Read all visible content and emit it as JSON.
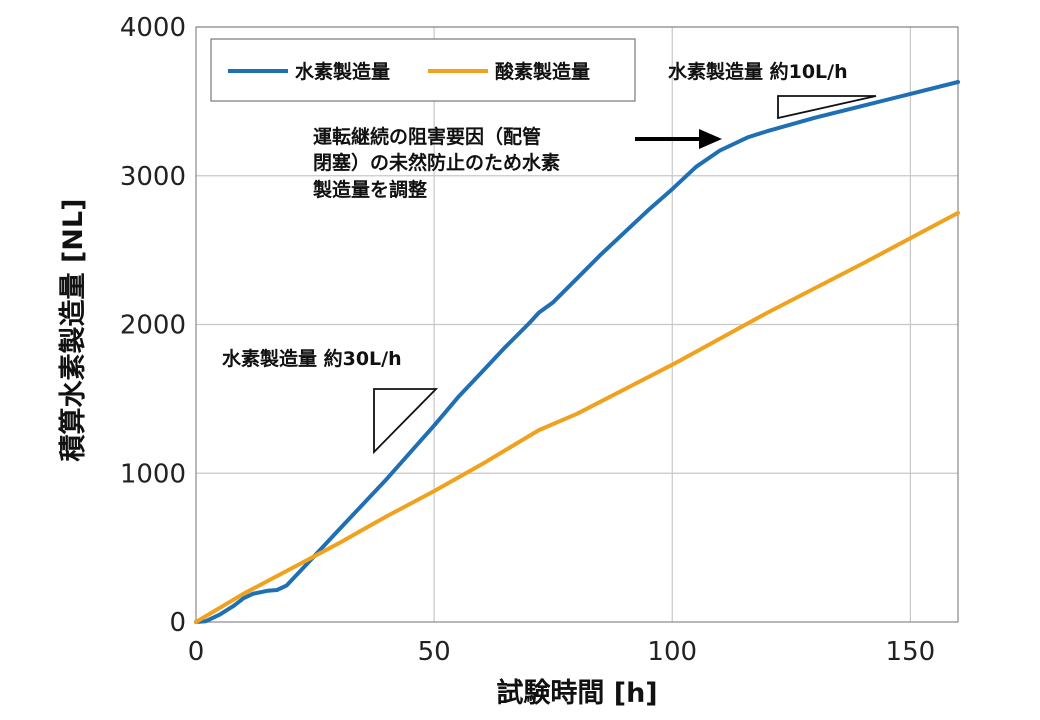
{
  "chart_data": {
    "type": "line",
    "xlabel": "試験時間 [h]",
    "ylabel": "積算水素製造量 [NL]",
    "xlim": [
      0,
      160
    ],
    "ylim": [
      0,
      4000
    ],
    "xticks": [
      0,
      50,
      100,
      150
    ],
    "yticks": [
      0,
      1000,
      2000,
      3000,
      4000
    ],
    "grid": true,
    "legend_position": "top-left",
    "series": [
      {
        "name": "水素製造量",
        "color": "#1f6fb5",
        "x": [
          0,
          2,
          5,
          8,
          10,
          12,
          15,
          17,
          19,
          23,
          30,
          40,
          50,
          55,
          60,
          65,
          70,
          72,
          75,
          80,
          85,
          90,
          95,
          100,
          105,
          110,
          116,
          120,
          130,
          140,
          150,
          160
        ],
        "y": [
          0,
          5,
          50,
          110,
          160,
          190,
          210,
          215,
          245,
          380,
          620,
          960,
          1320,
          1510,
          1680,
          1850,
          2010,
          2080,
          2150,
          2310,
          2470,
          2620,
          2770,
          2910,
          3060,
          3170,
          3260,
          3300,
          3390,
          3470,
          3550,
          3630
        ]
      },
      {
        "name": "酸素製造量",
        "color": "#f0a21e",
        "x": [
          0,
          10,
          20,
          30,
          35,
          40,
          50,
          60,
          72,
          80,
          100,
          120,
          140,
          160
        ],
        "y": [
          0,
          190,
          360,
          530,
          620,
          710,
          880,
          1060,
          1290,
          1400,
          1730,
          2080,
          2410,
          2750
        ]
      }
    ],
    "annotations": {
      "rate30": "水素製造量 約30L/h",
      "rate10": "水素製造量 約10L/h",
      "note_lines": [
        "運転継続の阻害要因（配管",
        "閉塞）の未然防止のため水素",
        "製造量を調整"
      ]
    }
  }
}
